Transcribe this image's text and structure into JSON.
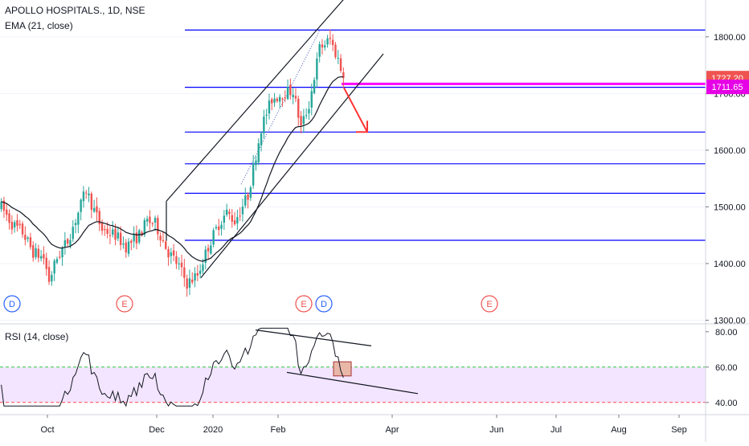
{
  "header": {
    "symbol_line": "APOLLO HOSPITALS., 1D, NSE",
    "indicator_line": "EMA (21, close)"
  },
  "rsi_panel": {
    "label": "RSI (14, close)"
  },
  "colors": {
    "up": "#26a69a",
    "down": "#ef5350",
    "level": "#0000ff",
    "magenta": "#ff00ff",
    "rsi_band": "#f3e5ff",
    "rsi_upper": "#2ecc40",
    "rsi_lower": "#ff4d4d",
    "event_e": "#ef5350",
    "event_d": "#2962ff",
    "arrow": "#ff3333",
    "price_tag_red": "#ef5350",
    "price_tag_magenta": "#e600e6"
  },
  "chart_data": [
    {
      "type": "candlestick",
      "title": "APOLLO HOSPITALS., 1D, NSE",
      "indicator": "EMA (21, close)",
      "ylim": [
        1295,
        1865
      ],
      "y_ticks": [
        "1800.00",
        "1700.00",
        "1600.00",
        "1500.00",
        "1400.00",
        "1300.00"
      ],
      "x_ticks": [
        "Oct",
        "Dec",
        "2020",
        "Feb",
        "Apr",
        "Jun",
        "Jul",
        "Aug",
        "Sep"
      ],
      "price_tags": [
        {
          "label": "1727.20",
          "value": 1727.2,
          "color": "price_tag_red"
        },
        {
          "label": "1711.65",
          "value": 1711.65,
          "color": "price_tag_magenta"
        }
      ],
      "horizontal_levels": [
        1812,
        1711,
        1632,
        1576,
        1524,
        1441
      ],
      "magenta_level": 1717,
      "events": [
        {
          "label": "D",
          "kind": "d"
        },
        {
          "label": "E",
          "kind": "e"
        },
        {
          "label": "E",
          "kind": "e"
        },
        {
          "label": "D",
          "kind": "d"
        },
        {
          "label": "E",
          "kind": "e"
        }
      ]
    },
    {
      "type": "line",
      "title": "RSI (14, close)",
      "ylim": [
        34,
        84
      ],
      "y_ticks": [
        "80.00",
        "60.00",
        "40.00"
      ],
      "upper_band": 60,
      "lower_band": 40
    }
  ]
}
